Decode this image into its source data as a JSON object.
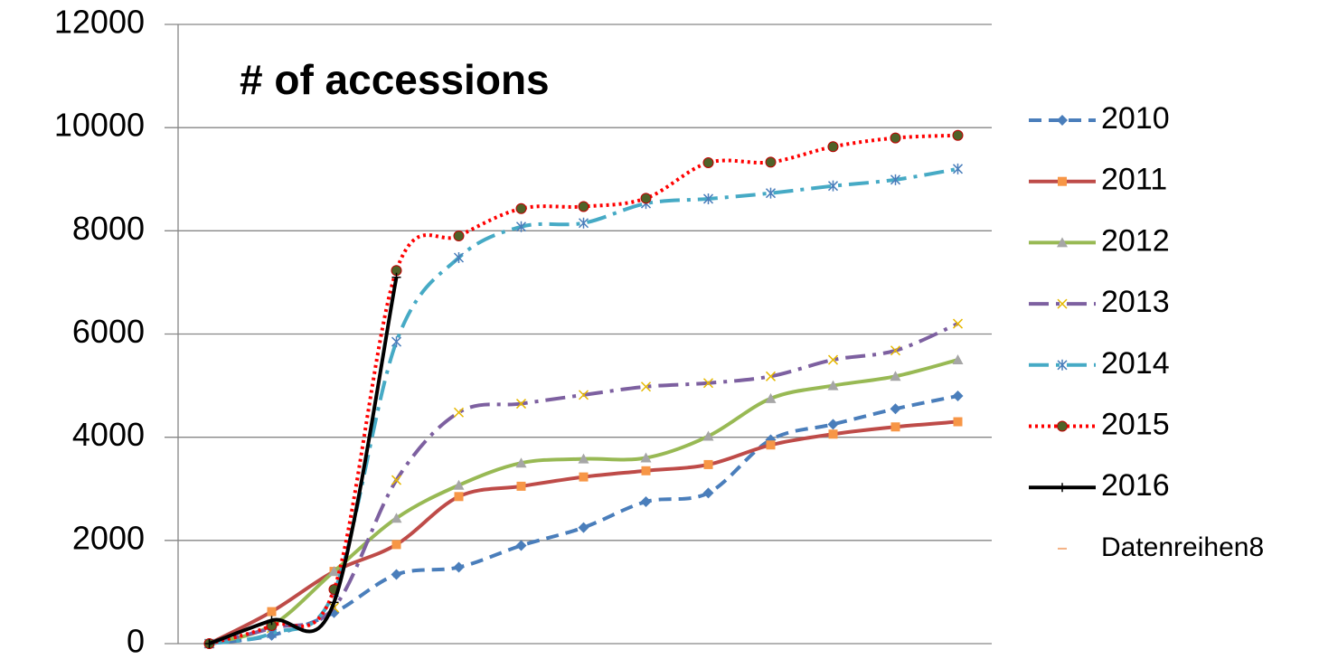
{
  "chart_data": {
    "type": "line",
    "title": "# of accessions",
    "categories": [
      null,
      null,
      null,
      null,
      null,
      null,
      null,
      null,
      null,
      null,
      null,
      null,
      null
    ],
    "ylim": [
      0,
      12000
    ],
    "yticks": [
      0,
      2000,
      4000,
      6000,
      8000,
      10000,
      12000
    ],
    "grid": true,
    "smooth": true,
    "legend": "right",
    "series": [
      {
        "name": "2010",
        "color": "#4a7ebb",
        "dash": "14 8",
        "marker": "diamond",
        "marker_color": "#4a7ebb",
        "values": [
          0,
          160,
          600,
          1340,
          1480,
          1900,
          2250,
          2750,
          2920,
          3950,
          4250,
          4550,
          4800
        ]
      },
      {
        "name": "2011",
        "color": "#be4b48",
        "dash": "",
        "marker": "square",
        "marker_color": "#f79646",
        "values": [
          0,
          620,
          1400,
          1920,
          2850,
          3050,
          3230,
          3350,
          3470,
          3850,
          4060,
          4200,
          4300
        ]
      },
      {
        "name": "2012",
        "color": "#98b954",
        "dash": "",
        "marker": "triangle",
        "marker_color": "#a6a6a6",
        "values": [
          0,
          350,
          1400,
          2430,
          3070,
          3500,
          3580,
          3600,
          4020,
          4750,
          5000,
          5180,
          5500
        ]
      },
      {
        "name": "2013",
        "color": "#7d60a0",
        "dash": "22 8 4 8",
        "marker": "x",
        "marker_color": "#e6b800",
        "values": [
          0,
          300,
          700,
          3170,
          4480,
          4650,
          4820,
          4980,
          5050,
          5180,
          5500,
          5680,
          6200
        ]
      },
      {
        "name": "2014",
        "color": "#46aac5",
        "dash": "22 8 4 8",
        "marker": "star",
        "marker_color": "#4a7ebb",
        "values": [
          0,
          200,
          1000,
          5850,
          7480,
          8080,
          8150,
          8530,
          8620,
          8730,
          8870,
          8990,
          9200
        ]
      },
      {
        "name": "2015",
        "color": "#ff0000",
        "dash": "3 4",
        "marker": "circle",
        "marker_color": "#4f6228",
        "values": [
          0,
          350,
          1050,
          7230,
          7900,
          8430,
          8470,
          8630,
          9320,
          9330,
          9630,
          9800,
          9850
        ]
      },
      {
        "name": "2016",
        "color": "#000000",
        "dash": "",
        "marker": "plus",
        "marker_color": "#000000",
        "values": [
          0,
          450,
          800,
          7100,
          null,
          null,
          null,
          null,
          null,
          null,
          null,
          null,
          null
        ]
      },
      {
        "name": "Datenreihen8",
        "color": "#f4b183",
        "dash": "",
        "marker": "none",
        "marker_color": "#f4b183",
        "values": [
          null,
          null,
          null,
          null,
          null,
          null,
          null,
          null,
          null,
          null,
          null,
          null,
          null
        ]
      }
    ]
  }
}
